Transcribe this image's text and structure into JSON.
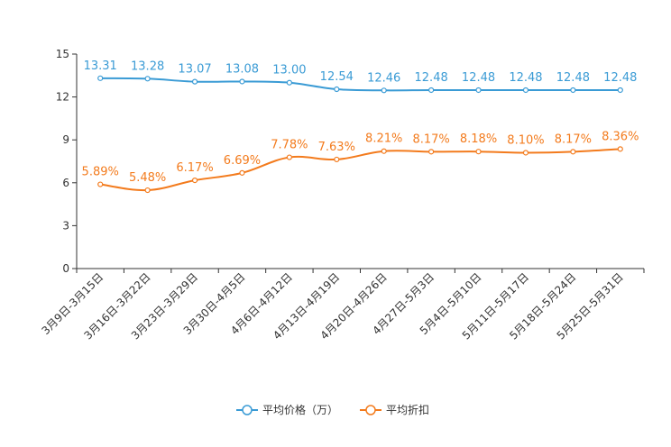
{
  "chart_data": {
    "type": "line",
    "title": "",
    "xlabel": "",
    "ylabel": "",
    "ylim": [
      0,
      15
    ],
    "yticks": [
      0,
      3,
      6,
      9,
      12,
      15
    ],
    "grid": false,
    "legend_position": "bottom",
    "categories": [
      "3月9日-3月15日",
      "3月16日-3月22日",
      "3月23日-3月29日",
      "3月30日-4月5日",
      "4月6日-4月12日",
      "4月13日-4月19日",
      "4月20日-4月26日",
      "4月27日-5月3日",
      "5月4日-5月10日",
      "5月11日-5月17日",
      "5月18日-5月24日",
      "5月25日-5月31日"
    ],
    "series": [
      {
        "name": "平均价格（万）",
        "color": "#3a9bd5",
        "values": [
          13.31,
          13.28,
          13.07,
          13.08,
          13.0,
          12.54,
          12.46,
          12.48,
          12.48,
          12.48,
          12.48,
          12.48
        ],
        "labels": [
          "13.31",
          "13.28",
          "13.07",
          "13.08",
          "13.00",
          "12.54",
          "12.46",
          "12.48",
          "12.48",
          "12.48",
          "12.48",
          "12.48"
        ]
      },
      {
        "name": "平均折扣",
        "color": "#f37b1d",
        "values": [
          5.89,
          5.48,
          6.17,
          6.69,
          7.78,
          7.63,
          8.21,
          8.17,
          8.18,
          8.1,
          8.17,
          8.36
        ],
        "labels": [
          "5.89%",
          "5.48%",
          "6.17%",
          "6.69%",
          "7.78%",
          "7.63%",
          "8.21%",
          "8.17%",
          "8.18%",
          "8.10%",
          "8.17%",
          "8.36%"
        ]
      }
    ]
  }
}
